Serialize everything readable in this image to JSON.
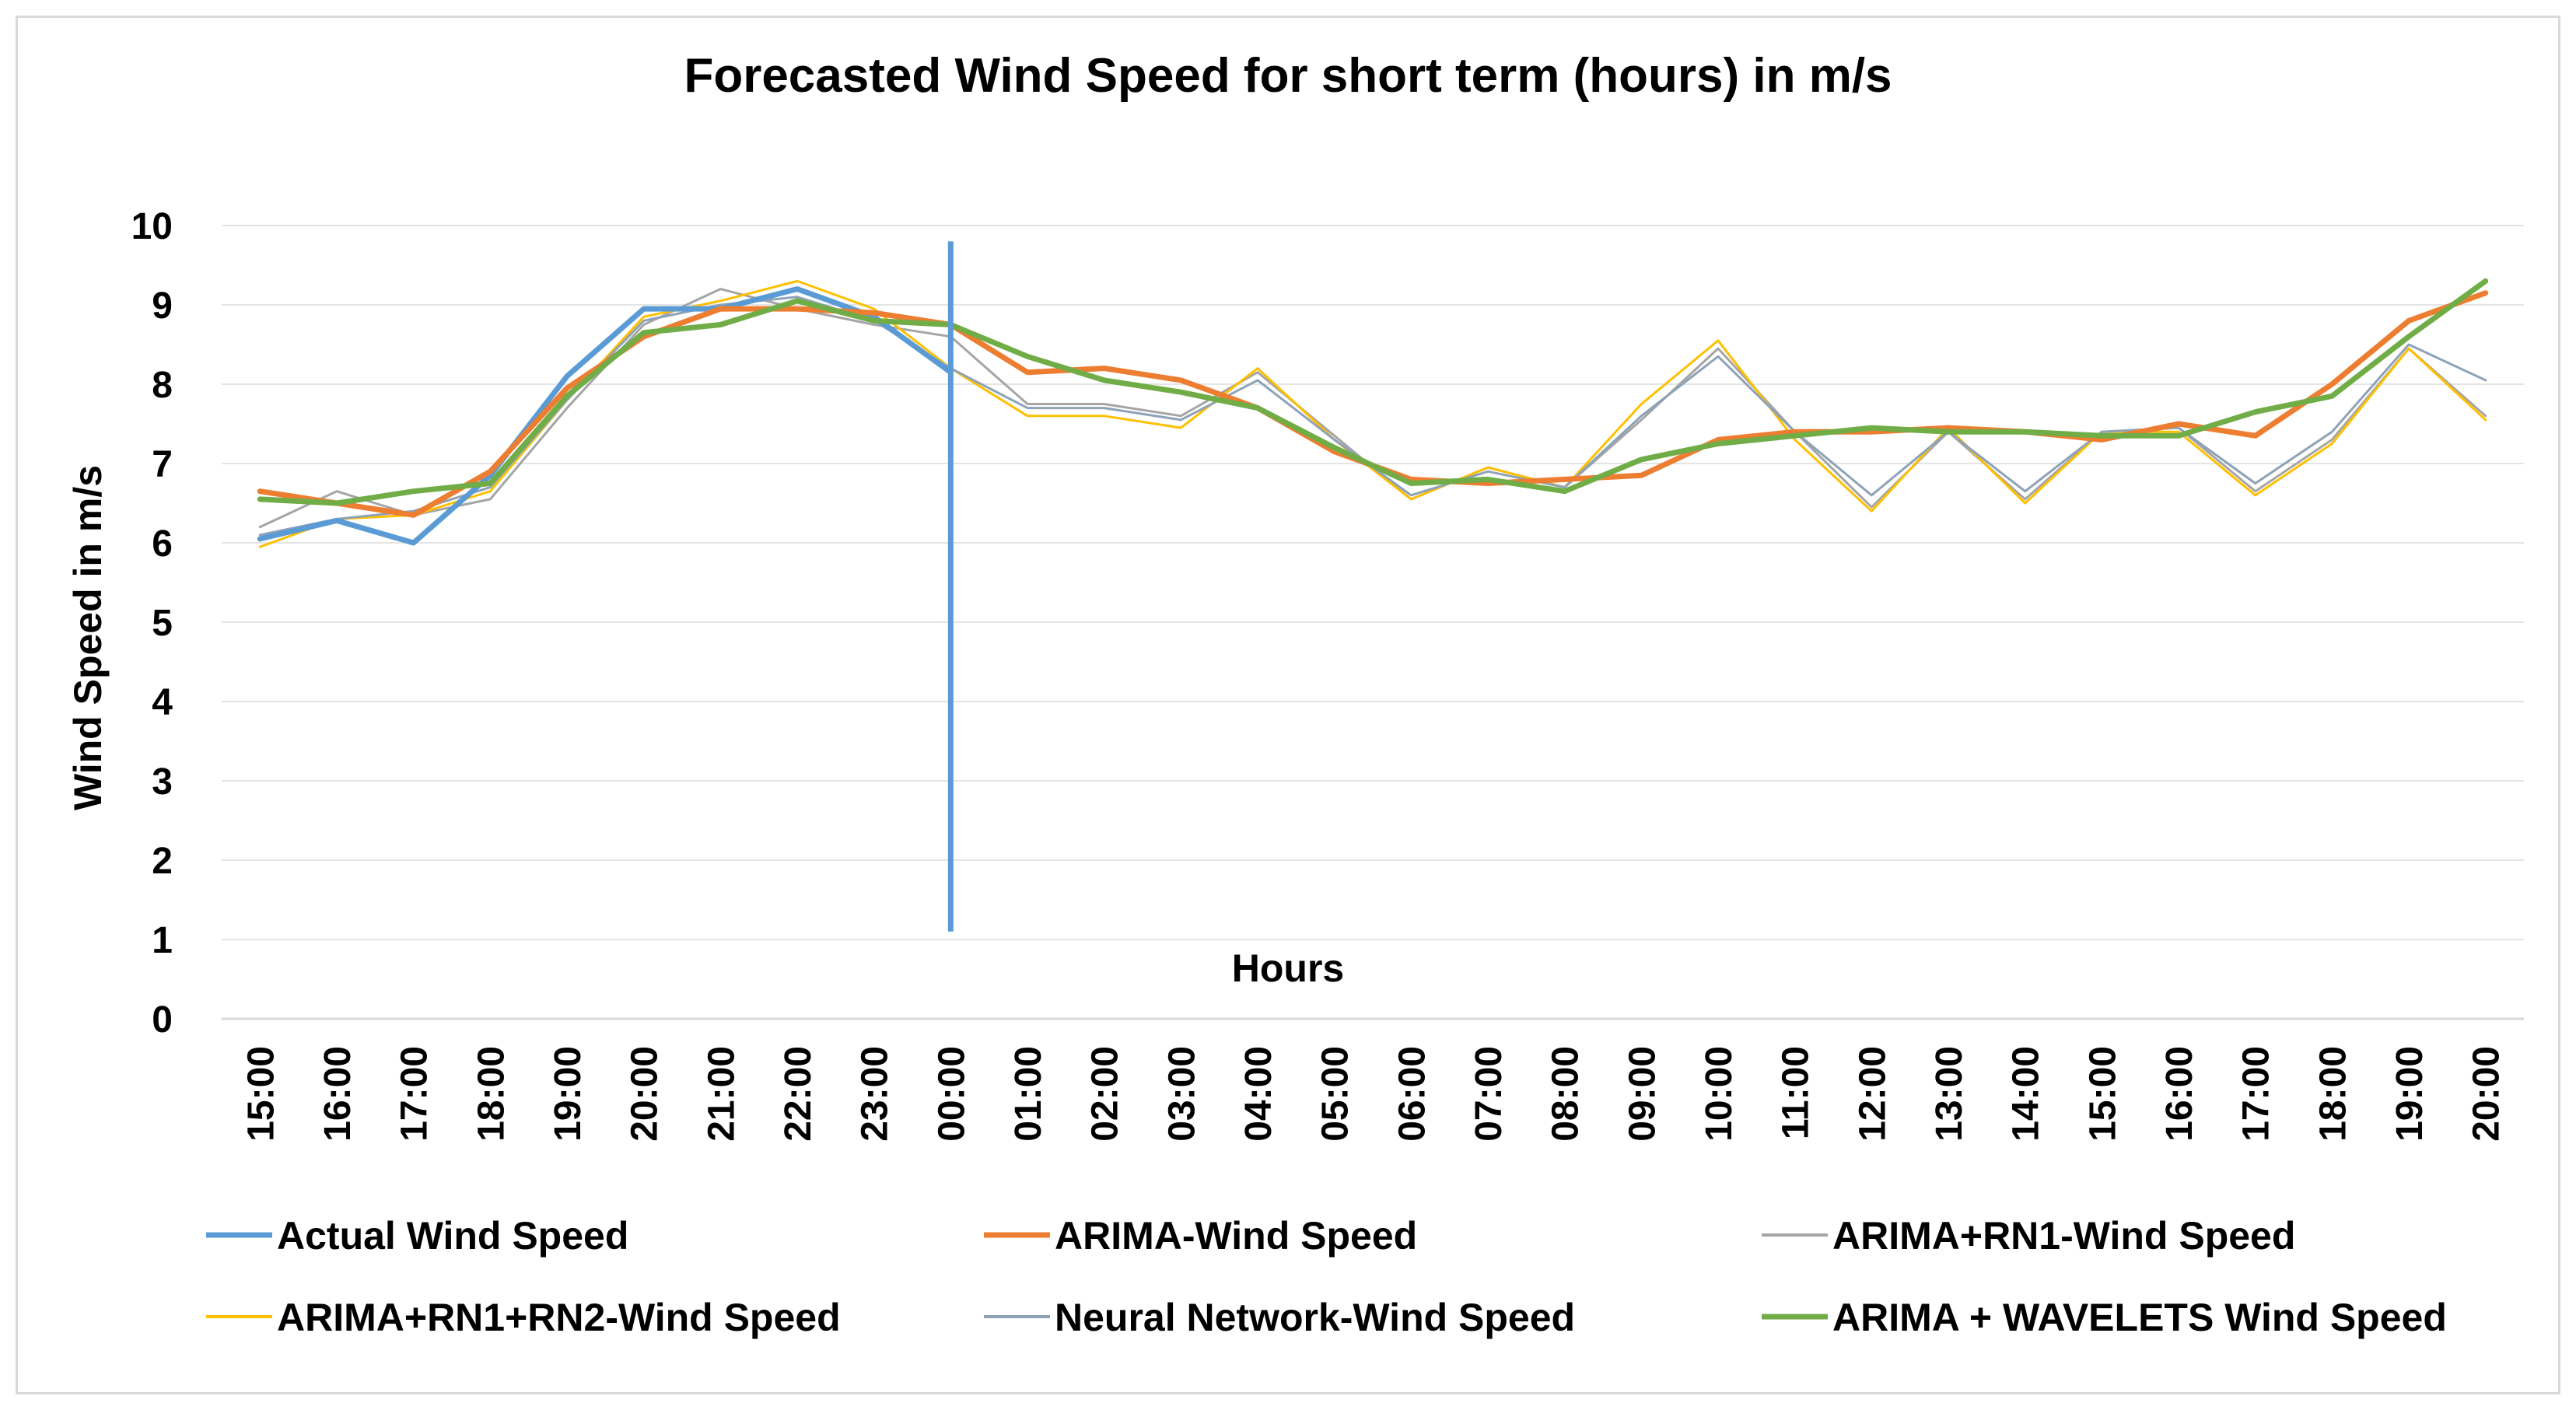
{
  "chart_data": {
    "type": "line",
    "title": "Forecasted  Wind Speed for short term (hours) in m/s",
    "xlabel": "Hours",
    "ylabel": "Wind  Speed  in m/s",
    "ylim": [
      0,
      10
    ],
    "yticks": [
      "0",
      "1",
      "2",
      "3",
      "4",
      "5",
      "6",
      "7",
      "8",
      "9",
      "10"
    ],
    "grid": true,
    "legend_position": "bottom",
    "categories": [
      "15:00",
      "16:00",
      "17:00",
      "18:00",
      "19:00",
      "20:00",
      "21:00",
      "22:00",
      "23:00",
      "00:00",
      "01:00",
      "02:00",
      "03:00",
      "04:00",
      "05:00",
      "06:00",
      "07:00",
      "08:00",
      "09:00",
      "10:00",
      "11:00",
      "12:00",
      "13:00",
      "14:00",
      "15:00",
      "16:00",
      "17:00",
      "18:00",
      "19:00",
      "20:00"
    ],
    "marker_line": {
      "category": "00:00",
      "from": 1.1,
      "to": 9.8,
      "color": "#5b9bd5"
    },
    "series": [
      {
        "name": "Actual Wind Speed",
        "color": "#5b9bd5",
        "width": 7,
        "values": [
          6.05,
          6.28,
          6.0,
          6.85,
          8.1,
          8.95,
          8.95,
          9.2,
          8.85,
          8.15,
          null,
          null,
          null,
          null,
          null,
          null,
          null,
          null,
          null,
          null,
          null,
          null,
          null,
          null,
          null,
          null,
          null,
          null,
          null,
          null
        ]
      },
      {
        "name": "ARIMA-Wind Speed",
        "color": "#ed7d31",
        "width": 7,
        "values": [
          6.65,
          6.5,
          6.35,
          6.9,
          7.95,
          8.6,
          8.95,
          8.95,
          8.9,
          8.75,
          8.15,
          8.2,
          8.05,
          7.7,
          7.15,
          6.8,
          6.75,
          6.8,
          6.85,
          7.3,
          7.4,
          7.4,
          7.45,
          7.4,
          7.3,
          7.5,
          7.35,
          8.0,
          8.8,
          9.15
        ]
      },
      {
        "name": "ARIMA+RN1-Wind Speed",
        "color": "#a5a5a5",
        "width": 3,
        "values": [
          6.2,
          6.65,
          6.35,
          6.55,
          7.7,
          8.75,
          9.2,
          8.95,
          8.75,
          8.6,
          7.75,
          7.75,
          7.6,
          8.15,
          7.35,
          6.55,
          6.95,
          6.7,
          7.55,
          8.45,
          7.4,
          6.45,
          7.4,
          6.55,
          7.4,
          7.45,
          6.65,
          7.3,
          8.45,
          7.6
        ]
      },
      {
        "name": "ARIMA+RN1+RN2-Wind Speed",
        "color": "#ffc000",
        "width": 3,
        "values": [
          5.95,
          6.3,
          6.35,
          6.65,
          7.8,
          8.85,
          9.05,
          9.3,
          8.95,
          8.2,
          7.6,
          7.6,
          7.45,
          8.2,
          7.3,
          6.55,
          6.95,
          6.7,
          7.75,
          8.55,
          7.3,
          6.4,
          7.45,
          6.5,
          7.4,
          7.4,
          6.6,
          7.25,
          8.45,
          7.55
        ]
      },
      {
        "name": "Neural Network-Wind Speed",
        "color": "#8ea2b8",
        "width": 3,
        "values": [
          6.1,
          6.3,
          6.4,
          6.7,
          7.8,
          8.8,
          9.0,
          9.1,
          8.8,
          8.2,
          7.7,
          7.7,
          7.55,
          8.05,
          7.3,
          6.6,
          6.9,
          6.7,
          7.6,
          8.35,
          7.4,
          6.6,
          7.4,
          6.65,
          7.4,
          7.45,
          6.75,
          7.4,
          8.5,
          8.05
        ]
      },
      {
        "name": "ARIMA + WAVELETS Wind Speed",
        "color": "#70ad47",
        "width": 7,
        "values": [
          6.55,
          6.5,
          6.65,
          6.75,
          7.85,
          8.65,
          8.75,
          9.05,
          8.8,
          8.75,
          8.35,
          8.05,
          7.9,
          7.7,
          7.2,
          6.75,
          6.8,
          6.65,
          7.05,
          7.25,
          7.35,
          7.45,
          7.4,
          7.4,
          7.35,
          7.35,
          7.65,
          7.85,
          8.6,
          9.3
        ]
      }
    ]
  }
}
